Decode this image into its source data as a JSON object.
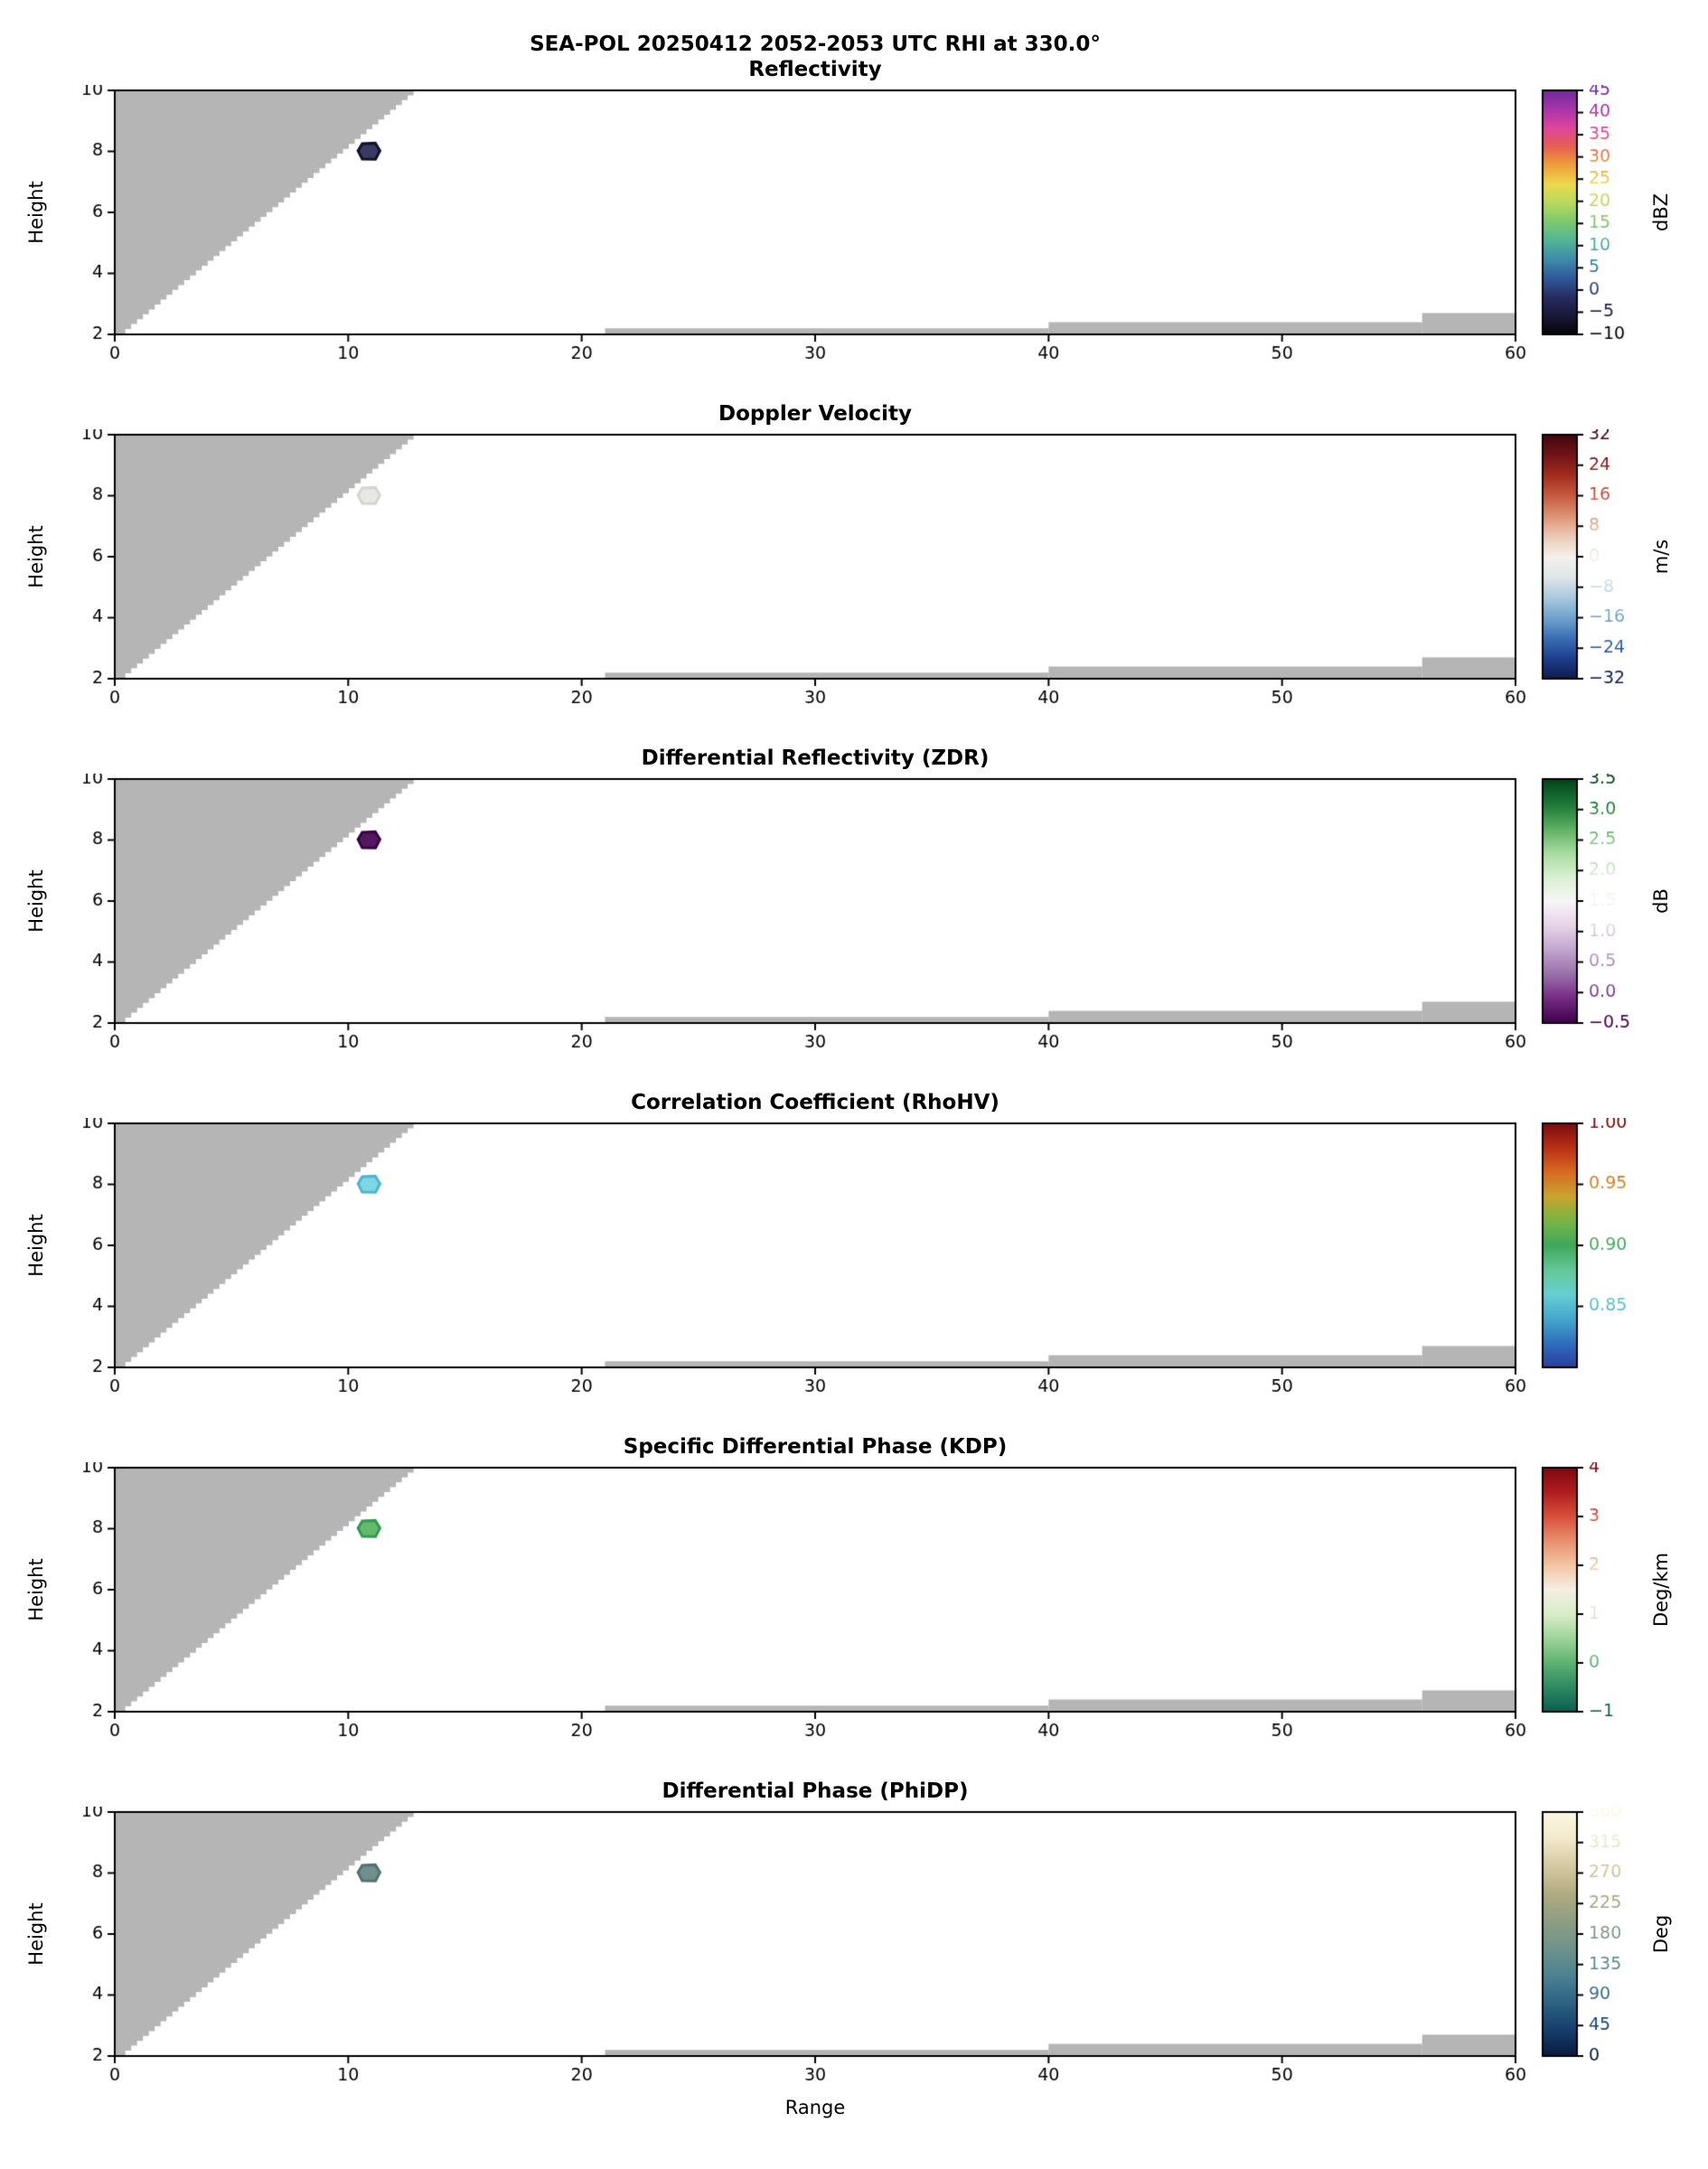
{
  "figure": {
    "title": "SEA-POL 20250412 2052-2053 UTC RHI at 330.0°",
    "xlabel": "Range",
    "background": "#ffffff",
    "mask_color": "#b5b5b5",
    "axis_color": "#000000"
  },
  "chart_data": {
    "type": "heatmap",
    "description": "Six stacked RHI (range-height) radar cross-section panels sharing x = Range 0-60 and y = Height 2-10. A gray blocked-data wedge with a stair-stepped diagonal edge fills the upper-left of each panel, thin gray ground strips lie along the bottom beyond range 21, and a single small echo cell appears near range 10.9, height 8.0 in every panel.",
    "x_range": [
      0,
      60
    ],
    "y_range": [
      2,
      10
    ],
    "x_ticks": [
      0,
      10,
      20,
      30,
      40,
      50,
      60
    ],
    "x_tick_labels": [
      "0",
      "10",
      "20",
      "30",
      "40",
      "50",
      "60"
    ],
    "y_ticks": [
      2,
      4,
      6,
      8,
      10
    ],
    "y_tick_labels": [
      "2",
      "4",
      "6",
      "8",
      "10"
    ],
    "blocked_region": {
      "diag_from": [
        0.2,
        2.02
      ],
      "diag_to": [
        12.8,
        10
      ],
      "steps": 50
    },
    "ground_strips": [
      {
        "x0": 21,
        "x1": 40,
        "y0": 2,
        "y1": 2.2
      },
      {
        "x0": 40,
        "x1": 56,
        "y0": 2,
        "y1": 2.4
      },
      {
        "x0": 56,
        "x1": 60,
        "y0": 2,
        "y1": 2.7
      }
    ],
    "echo": {
      "x": 10.9,
      "y": 8.0,
      "shape": [
        [
          -0.48,
          0.02
        ],
        [
          -0.3,
          0.25
        ],
        [
          0.26,
          0.27
        ],
        [
          0.46,
          0.02
        ],
        [
          0.27,
          -0.26
        ],
        [
          -0.3,
          -0.25
        ]
      ]
    },
    "panels": [
      {
        "title": "Reflectivity",
        "ylabel": "Height",
        "cbar_label": "dBZ",
        "vmin": -10,
        "vmax": 45,
        "cbar_ticks": [
          -10,
          -5,
          0,
          5,
          10,
          15,
          20,
          25,
          30,
          35,
          40,
          45
        ],
        "cbar_tick_labels": [
          "−10",
          "−5",
          "0",
          "5",
          "10",
          "15",
          "20",
          "25",
          "30",
          "35",
          "40",
          "45"
        ],
        "colormap": [
          "#050508",
          "#1a1838",
          "#282c63",
          "#2f5a9b",
          "#3f8cab",
          "#52b596",
          "#7cc96e",
          "#b8d95c",
          "#ecd94e",
          "#f0a03a",
          "#e66052",
          "#e0459c",
          "#a935ab",
          "#712a9c"
        ],
        "echo_value": 0,
        "echo_fill": "#3a3a63",
        "echo_edge": "#10102a"
      },
      {
        "title": "Doppler Velocity",
        "ylabel": "Height",
        "cbar_label": "m/s",
        "vmin": -32,
        "vmax": 32,
        "cbar_ticks": [
          -32,
          -24,
          -16,
          -8,
          0,
          8,
          16,
          24,
          32
        ],
        "cbar_tick_labels": [
          "−32",
          "−24",
          "−16",
          "−8",
          "0",
          "8",
          "16",
          "24",
          "32"
        ],
        "colormap": [
          "#101b4d",
          "#1d3f8f",
          "#3a6fb5",
          "#72a3cc",
          "#aac9dd",
          "#dfe7ea",
          "#f4f0ec",
          "#eccab6",
          "#dd9374",
          "#c65a40",
          "#a42c1f",
          "#701418",
          "#40070c"
        ],
        "echo_value": 0.5,
        "echo_fill": "#e9e8e5",
        "echo_edge": "#d6d5d0"
      },
      {
        "title": "Differential Reflectivity (ZDR)",
        "ylabel": "Height",
        "cbar_label": "dB",
        "vmin": -0.5,
        "vmax": 3.5,
        "cbar_ticks": [
          -0.5,
          0.0,
          0.5,
          1.0,
          1.5,
          2.0,
          2.5,
          3.0,
          3.5
        ],
        "cbar_tick_labels": [
          "−0.5",
          "0.0",
          "0.5",
          "1.0",
          "1.5",
          "2.0",
          "2.5",
          "3.0",
          "3.5"
        ],
        "colormap": [
          "#40004b",
          "#762a83",
          "#9970ab",
          "#c2a5cf",
          "#e7d4e8",
          "#f7f7f7",
          "#d9f0d3",
          "#a6dba0",
          "#5aae61",
          "#1b7837",
          "#00441b"
        ],
        "echo_value": -0.4,
        "echo_fill": "#55175f",
        "echo_edge": "#360443"
      },
      {
        "title": "Correlation Coefficient (RhoHV)",
        "ylabel": "Height",
        "cbar_label": "",
        "vmin": 0.8,
        "vmax": 1.0,
        "cbar_ticks": [
          0.85,
          0.9,
          0.95,
          1.0
        ],
        "cbar_tick_labels": [
          "0.85",
          "0.90",
          "0.95",
          "1.00"
        ],
        "colormap": [
          "#2a3f9e",
          "#2f6fbe",
          "#44a8cc",
          "#67cfd2",
          "#63c896",
          "#3fa85c",
          "#7ab544",
          "#c9a52e",
          "#d96a22",
          "#b93015",
          "#7a0c0f"
        ],
        "echo_value": 0.92,
        "echo_fill": "#7fd6e4",
        "echo_edge": "#4ab6cf"
      },
      {
        "title": "Specific Differential Phase (KDP)",
        "ylabel": "Height",
        "cbar_label": "Deg/km",
        "vmin": -1,
        "vmax": 4,
        "cbar_ticks": [
          -1,
          0,
          1,
          2,
          3,
          4
        ],
        "cbar_tick_labels": [
          "−1",
          "0",
          "1",
          "2",
          "3",
          "4"
        ],
        "colormap": [
          "#0c5f50",
          "#2d8a62",
          "#5fb273",
          "#9ed49a",
          "#d9edc8",
          "#f5efe4",
          "#f3c6a4",
          "#e88f6e",
          "#d9503c",
          "#b01c20",
          "#7c0a12"
        ],
        "echo_value": -0.1,
        "echo_fill": "#62ba6a",
        "echo_edge": "#309a52"
      },
      {
        "title": "Differential Phase (PhiDP)",
        "ylabel": "Height",
        "cbar_label": "Deg",
        "vmin": 0,
        "vmax": 360,
        "cbar_ticks": [
          0,
          45,
          90,
          135,
          180,
          225,
          270,
          315,
          360
        ],
        "cbar_tick_labels": [
          "0",
          "45",
          "90",
          "135",
          "180",
          "225",
          "270",
          "315",
          "360"
        ],
        "colormap": [
          "#081c3f",
          "#163f6f",
          "#2e6484",
          "#4e8390",
          "#6f948d",
          "#8f9e82",
          "#b2ac83",
          "#d6c9a2",
          "#f2e9cc",
          "#fdf9e3"
        ],
        "echo_value": 205,
        "echo_fill": "#708f8e",
        "echo_edge": "#53716f"
      }
    ]
  }
}
